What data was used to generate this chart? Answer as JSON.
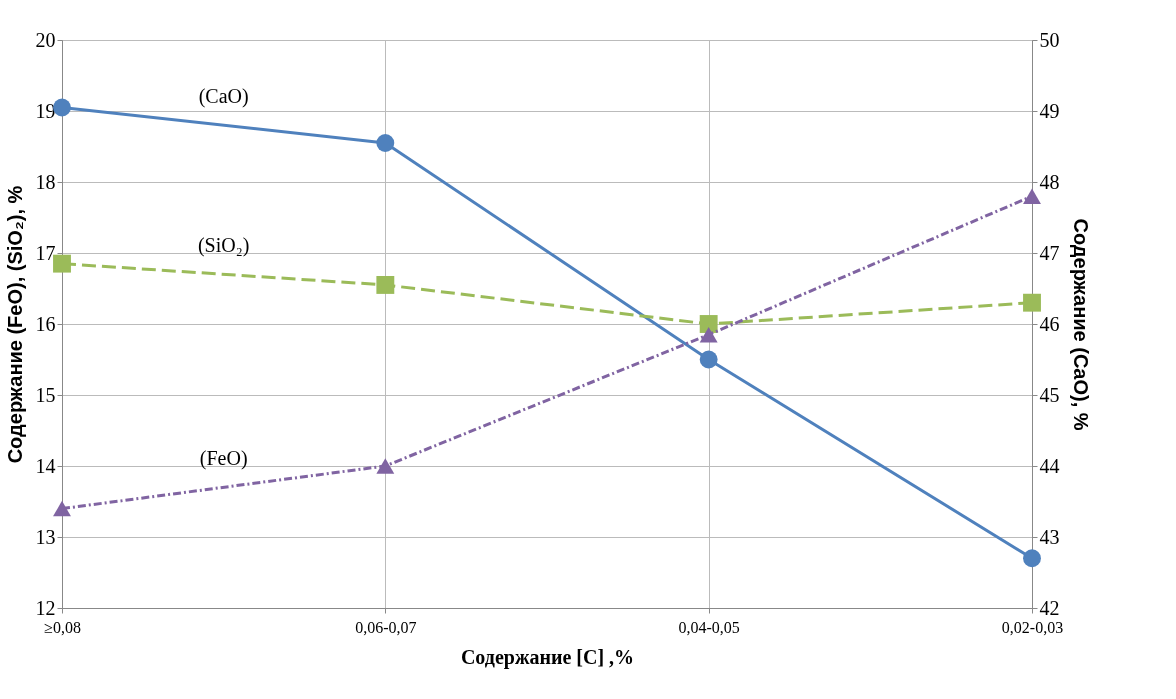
{
  "chart_data": {
    "type": "line",
    "xlabel": "Содержание [C] ,%",
    "ylabel": "Содержание (FeO), (SiO₂), %",
    "y2label": "Содержание (CaO), %",
    "categories": [
      "≥0,08",
      "0,06-0,07",
      "0,04-0,05",
      "0,02-0,03"
    ],
    "series": [
      {
        "name": "(CaO)",
        "color": "#4f81bd",
        "values": [
          49.05,
          48.55,
          45.5,
          42.7
        ],
        "axis": "y2",
        "marker": "circle",
        "line_style": "solid"
      },
      {
        "name": "(SiO₂)",
        "color": "#9bbb59",
        "values": [
          16.85,
          16.55,
          16.0,
          16.3
        ],
        "marker": "square",
        "line_style": "dashed"
      },
      {
        "name": "(FeO)",
        "color": "#8064a2",
        "values": [
          13.4,
          14.0,
          15.85,
          17.8
        ],
        "marker": "triangle",
        "line_style": "dashdot"
      }
    ],
    "ylim": [
      12,
      20
    ],
    "yticks": [
      12,
      13,
      14,
      15,
      16,
      17,
      18,
      19,
      20
    ],
    "y2lim": [
      42,
      50
    ],
    "y2ticks": [
      42,
      43,
      44,
      45,
      46,
      47,
      48,
      49,
      50
    ],
    "grid": true
  }
}
